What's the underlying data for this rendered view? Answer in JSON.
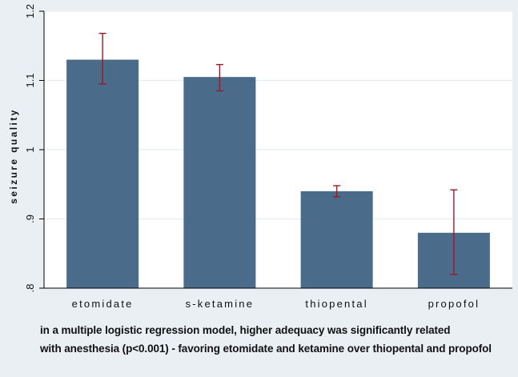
{
  "chart_data": {
    "type": "bar",
    "categories": [
      "etomidate",
      "s-ketamine",
      "thiopental",
      "propofol"
    ],
    "values": [
      1.13,
      1.105,
      0.94,
      0.88
    ],
    "error_low": [
      1.095,
      1.085,
      0.932,
      0.82
    ],
    "error_high": [
      1.168,
      1.123,
      0.948,
      0.942
    ],
    "ylabel": "seizure quality",
    "xlabel": "",
    "ylim": [
      0.8,
      1.2
    ],
    "yticks": [
      ".8",
      ".9",
      "1",
      "1.1",
      "1.2"
    ],
    "grid": true,
    "colors": {
      "bar": "#4a6b8a",
      "error_bar": "#8e1f2b",
      "plot_bg": "#ffffff",
      "outer_bg": "#e9eff3",
      "grid": "#e6ecf0",
      "axis": "#000000"
    }
  },
  "caption": {
    "line1_part1": "in  a multiple logistic regression model",
    "line1_underlined": ",",
    "line1_part2": " higher adequacy was significantly related",
    "line2": "with anesthesia (p<0.001) -  favoring etomidate and ketamine over thiopental and propofol"
  }
}
